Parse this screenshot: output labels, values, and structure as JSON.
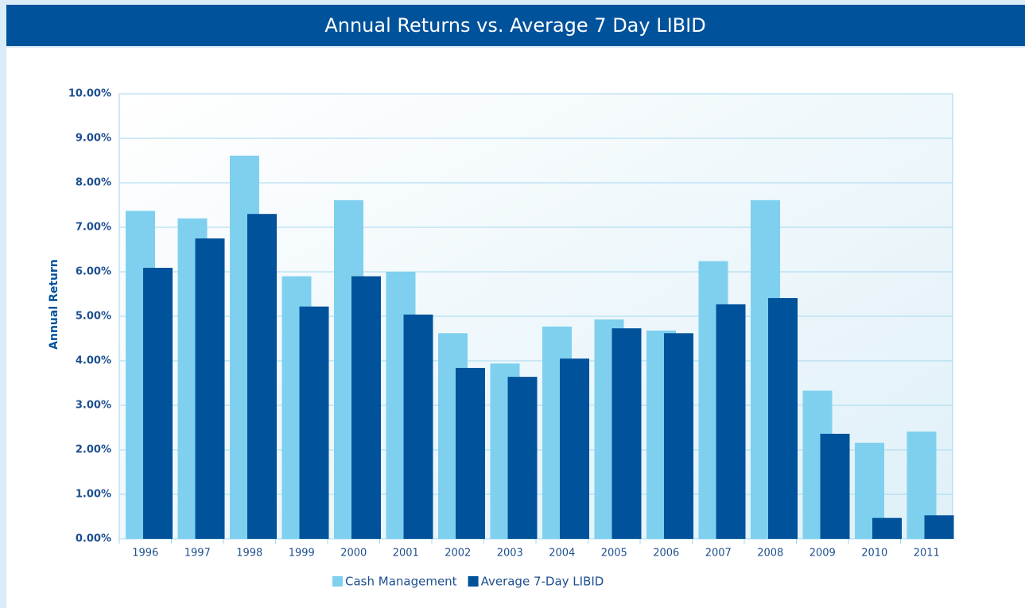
{
  "chart_data": {
    "type": "bar",
    "title": "Annual Returns vs. Average 7 Day LIBID",
    "y_label": "Annual Return",
    "categories": [
      "1996",
      "1997",
      "1998",
      "1999",
      "2000",
      "2001",
      "2002",
      "2003",
      "2004",
      "2005",
      "2006",
      "2007",
      "2008",
      "2009",
      "2010",
      "2011"
    ],
    "series": [
      {
        "name": "Cash Management",
        "color": "#7fd0ee",
        "values": [
          7.37,
          7.2,
          8.61,
          5.9,
          7.61,
          6.0,
          4.62,
          3.94,
          4.77,
          4.93,
          4.68,
          6.24,
          7.61,
          3.33,
          2.16,
          2.41
        ]
      },
      {
        "name": "Average 7-Day LIBID",
        "color": "#00529b",
        "values": [
          6.09,
          6.75,
          7.3,
          5.22,
          5.9,
          5.04,
          3.84,
          3.64,
          4.05,
          4.73,
          4.62,
          5.27,
          5.41,
          2.36,
          0.47,
          0.53
        ]
      }
    ],
    "ylim": [
      0,
      10
    ],
    "yticks": [
      {
        "value": 0,
        "label": "0.00%"
      },
      {
        "value": 1,
        "label": "1.00%"
      },
      {
        "value": 2,
        "label": "2.00%"
      },
      {
        "value": 3,
        "label": "3.00%"
      },
      {
        "value": 4,
        "label": "4.00%"
      },
      {
        "value": 5,
        "label": "5.00%"
      },
      {
        "value": 6,
        "label": "6.00%"
      },
      {
        "value": 7,
        "label": "7.00%"
      },
      {
        "value": 8,
        "label": "8.00%"
      },
      {
        "value": 9,
        "label": "9.00%"
      },
      {
        "value": 10,
        "label": "10.00%"
      }
    ],
    "grid": true,
    "legend": "bottom"
  }
}
